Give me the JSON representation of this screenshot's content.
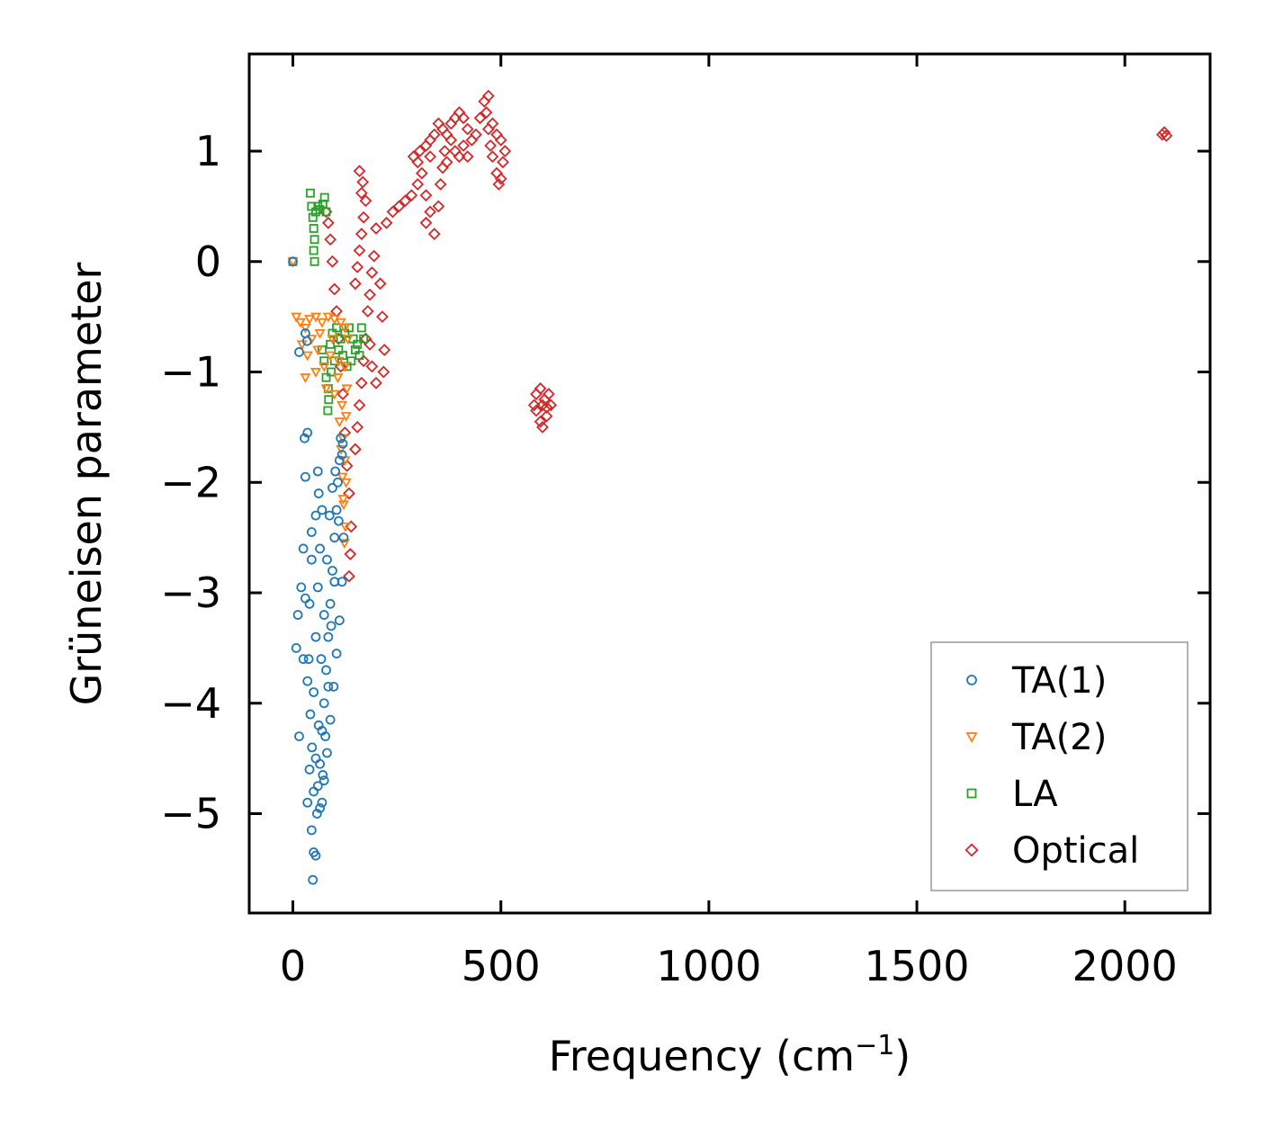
{
  "chart_data": {
    "type": "scatter",
    "title": "",
    "xlabel": {
      "main": "Frequency (cm",
      "superscript": "−1",
      "close": ")"
    },
    "ylabel": "Grüneisen parameter",
    "xlim": [
      -105,
      2205
    ],
    "ylim": [
      -5.9,
      1.88
    ],
    "xticks": [
      0,
      500,
      1000,
      1500,
      2000
    ],
    "xtick_labels": [
      "0",
      "500",
      "1000",
      "1500",
      "2000"
    ],
    "yticks": [
      1,
      0,
      -1,
      -2,
      -3,
      -4,
      -5
    ],
    "ytick_labels": [
      "1",
      "0",
      "−1",
      "−2",
      "−3",
      "−4",
      "−5"
    ],
    "grid": false,
    "legend_position": "bottom-right",
    "series": [
      {
        "name": "TA(1)",
        "marker": "circle",
        "color": "#1f77b4",
        "points": [
          [
            0,
            0
          ],
          [
            15,
            -0.82
          ],
          [
            30,
            -0.65
          ],
          [
            34,
            -0.72
          ],
          [
            28,
            -1.6
          ],
          [
            30,
            -1.95
          ],
          [
            35,
            -1.55
          ],
          [
            25,
            -2.6
          ],
          [
            20,
            -2.95
          ],
          [
            12,
            -3.2
          ],
          [
            8,
            -3.5
          ],
          [
            15,
            -4.3
          ],
          [
            40,
            -4.6
          ],
          [
            35,
            -4.9
          ],
          [
            45,
            -5.15
          ],
          [
            50,
            -5.35
          ],
          [
            48,
            -5.6
          ],
          [
            55,
            -5.38
          ],
          [
            60,
            -4.75
          ],
          [
            65,
            -4.55
          ],
          [
            70,
            -4.25
          ],
          [
            75,
            -4.0
          ],
          [
            80,
            -3.7
          ],
          [
            85,
            -3.4
          ],
          [
            90,
            -3.1
          ],
          [
            95,
            -2.8
          ],
          [
            100,
            -2.5
          ],
          [
            105,
            -2.25
          ],
          [
            108,
            -2.0
          ],
          [
            112,
            -1.8
          ],
          [
            115,
            -1.6
          ],
          [
            118,
            -1.75
          ],
          [
            110,
            -2.35
          ],
          [
            100,
            -2.9
          ],
          [
            92,
            -3.3
          ],
          [
            85,
            -3.85
          ],
          [
            78,
            -4.3
          ],
          [
            72,
            -4.65
          ],
          [
            65,
            -4.95
          ],
          [
            58,
            -5.0
          ],
          [
            50,
            -4.8
          ],
          [
            46,
            -4.4
          ],
          [
            50,
            -3.9
          ],
          [
            55,
            -3.4
          ],
          [
            60,
            -2.95
          ],
          [
            65,
            -2.6
          ],
          [
            70,
            -2.25
          ],
          [
            62,
            -2.1
          ],
          [
            55,
            -2.3
          ],
          [
            45,
            -2.7
          ],
          [
            40,
            -3.1
          ],
          [
            38,
            -3.6
          ],
          [
            42,
            -4.1
          ],
          [
            55,
            -4.5
          ],
          [
            62,
            -4.2
          ],
          [
            68,
            -3.6
          ],
          [
            75,
            -3.2
          ],
          [
            82,
            -2.7
          ],
          [
            88,
            -2.3
          ],
          [
            95,
            -2.05
          ],
          [
            102,
            -1.9
          ],
          [
            60,
            -1.9
          ],
          [
            45,
            -2.45
          ],
          [
            30,
            -3.05
          ],
          [
            25,
            -3.6
          ],
          [
            35,
            -3.8
          ],
          [
            120,
            -1.65
          ],
          [
            122,
            -2.5
          ],
          [
            118,
            -2.9
          ],
          [
            112,
            -3.25
          ],
          [
            105,
            -3.55
          ],
          [
            98,
            -3.85
          ],
          [
            90,
            -4.15
          ],
          [
            82,
            -4.45
          ],
          [
            75,
            -4.7
          ],
          [
            70,
            -4.9
          ]
        ]
      },
      {
        "name": "TA(2)",
        "marker": "triangle-down",
        "color": "#ff7f0e",
        "points": [
          [
            0,
            0
          ],
          [
            8,
            -0.5
          ],
          [
            18,
            -0.55
          ],
          [
            30,
            -0.6
          ],
          [
            40,
            -0.52
          ],
          [
            55,
            -0.5
          ],
          [
            70,
            -0.55
          ],
          [
            85,
            -0.5
          ],
          [
            100,
            -0.52
          ],
          [
            115,
            -0.55
          ],
          [
            125,
            -0.6
          ],
          [
            22,
            -0.75
          ],
          [
            35,
            -0.85
          ],
          [
            45,
            -0.7
          ],
          [
            60,
            -0.8
          ],
          [
            75,
            -0.95
          ],
          [
            90,
            -0.85
          ],
          [
            110,
            -0.9
          ],
          [
            125,
            -0.95
          ],
          [
            30,
            -1.05
          ],
          [
            55,
            -1.0
          ],
          [
            80,
            -1.15
          ],
          [
            100,
            -1.2
          ],
          [
            118,
            -1.3
          ],
          [
            128,
            -1.4
          ],
          [
            120,
            -1.6
          ],
          [
            125,
            -1.8
          ],
          [
            128,
            -2.0
          ],
          [
            122,
            -2.2
          ],
          [
            126,
            -2.4
          ],
          [
            124,
            -2.55
          ],
          [
            130,
            -1.15
          ],
          [
            132,
            -0.7
          ],
          [
            65,
            -0.65
          ],
          [
            95,
            -0.7
          ],
          [
            108,
            -1.05
          ],
          [
            112,
            -1.45
          ],
          [
            116,
            -1.7
          ],
          [
            119,
            -1.95
          ],
          [
            121,
            -2.15
          ]
        ]
      },
      {
        "name": "LA",
        "marker": "square",
        "color": "#2ca02c",
        "points": [
          [
            0,
            0
          ],
          [
            42,
            0.62
          ],
          [
            45,
            0.5
          ],
          [
            48,
            0.4
          ],
          [
            50,
            0.3
          ],
          [
            52,
            0.2
          ],
          [
            50,
            0.1
          ],
          [
            52,
            0.0
          ],
          [
            55,
            0.45
          ],
          [
            60,
            0.5
          ],
          [
            65,
            0.47
          ],
          [
            72,
            0.52
          ],
          [
            76,
            0.58
          ],
          [
            80,
            0.45
          ],
          [
            70,
            -0.8
          ],
          [
            75,
            -0.9
          ],
          [
            80,
            -1.05
          ],
          [
            85,
            -1.15
          ],
          [
            90,
            -0.75
          ],
          [
            95,
            -0.65
          ],
          [
            105,
            -0.6
          ],
          [
            115,
            -0.7
          ],
          [
            125,
            -0.65
          ],
          [
            135,
            -0.6
          ],
          [
            145,
            -0.7
          ],
          [
            155,
            -0.75
          ],
          [
            165,
            -0.6
          ],
          [
            170,
            -0.7
          ],
          [
            160,
            -0.85
          ],
          [
            150,
            -0.8
          ],
          [
            140,
            -0.9
          ],
          [
            130,
            -0.95
          ],
          [
            120,
            -0.85
          ],
          [
            110,
            -0.8
          ],
          [
            100,
            -0.9
          ],
          [
            92,
            -1.0
          ],
          [
            86,
            -1.25
          ],
          [
            84,
            -1.35
          ]
        ]
      },
      {
        "name": "Optical",
        "marker": "diamond",
        "color": "#d62728",
        "points": [
          [
            80,
            0.45
          ],
          [
            85,
            0.35
          ],
          [
            90,
            0.2
          ],
          [
            95,
            0.0
          ],
          [
            100,
            -0.25
          ],
          [
            105,
            -0.45
          ],
          [
            110,
            -0.7
          ],
          [
            115,
            -0.95
          ],
          [
            120,
            -1.2
          ],
          [
            125,
            -1.55
          ],
          [
            130,
            -1.85
          ],
          [
            135,
            -2.1
          ],
          [
            140,
            -2.4
          ],
          [
            138,
            -2.65
          ],
          [
            135,
            -2.85
          ],
          [
            150,
            -1.7
          ],
          [
            155,
            -1.5
          ],
          [
            160,
            -1.3
          ],
          [
            165,
            -1.1
          ],
          [
            170,
            -0.9
          ],
          [
            175,
            -0.7
          ],
          [
            180,
            -0.45
          ],
          [
            185,
            -0.3
          ],
          [
            190,
            -0.1
          ],
          [
            195,
            0.05
          ],
          [
            150,
            -0.2
          ],
          [
            155,
            -0.05
          ],
          [
            160,
            0.1
          ],
          [
            165,
            0.25
          ],
          [
            170,
            0.4
          ],
          [
            175,
            0.55
          ],
          [
            168,
            0.72
          ],
          [
            160,
            0.82
          ],
          [
            165,
            0.62
          ],
          [
            200,
            0.3
          ],
          [
            210,
            -0.2
          ],
          [
            215,
            -0.5
          ],
          [
            220,
            -0.8
          ],
          [
            218,
            -1.0
          ],
          [
            200,
            -1.1
          ],
          [
            190,
            -0.95
          ],
          [
            185,
            -0.75
          ],
          [
            225,
            0.35
          ],
          [
            240,
            0.45
          ],
          [
            255,
            0.5
          ],
          [
            270,
            0.55
          ],
          [
            285,
            0.6
          ],
          [
            300,
            0.7
          ],
          [
            310,
            0.8
          ],
          [
            305,
            1.0
          ],
          [
            300,
            0.9
          ],
          [
            290,
            0.95
          ],
          [
            320,
            1.05
          ],
          [
            330,
            0.95
          ],
          [
            320,
            0.6
          ],
          [
            330,
            0.45
          ],
          [
            320,
            0.35
          ],
          [
            340,
            0.25
          ],
          [
            350,
            0.5
          ],
          [
            355,
            0.7
          ],
          [
            360,
            0.85
          ],
          [
            365,
            1.0
          ],
          [
            370,
            1.15
          ],
          [
            380,
            1.25
          ],
          [
            390,
            1.3
          ],
          [
            400,
            1.35
          ],
          [
            410,
            1.3
          ],
          [
            420,
            1.2
          ],
          [
            430,
            1.1
          ],
          [
            440,
            1.15
          ],
          [
            450,
            1.3
          ],
          [
            460,
            1.45
          ],
          [
            470,
            1.5
          ],
          [
            465,
            1.35
          ],
          [
            470,
            1.2
          ],
          [
            475,
            1.05
          ],
          [
            480,
            0.95
          ],
          [
            490,
            0.8
          ],
          [
            495,
            0.7
          ],
          [
            500,
            0.75
          ],
          [
            505,
            0.9
          ],
          [
            510,
            1.0
          ],
          [
            500,
            1.1
          ],
          [
            490,
            1.15
          ],
          [
            480,
            1.25
          ],
          [
            410,
            1.05
          ],
          [
            420,
            0.95
          ],
          [
            400,
            0.95
          ],
          [
            390,
            1.0
          ],
          [
            380,
            1.1
          ],
          [
            370,
            0.9
          ],
          [
            360,
            1.2
          ],
          [
            350,
            1.25
          ],
          [
            340,
            1.15
          ],
          [
            330,
            1.1
          ],
          [
            585,
            -1.2
          ],
          [
            595,
            -1.15
          ],
          [
            605,
            -1.25
          ],
          [
            615,
            -1.2
          ],
          [
            620,
            -1.3
          ],
          [
            610,
            -1.4
          ],
          [
            600,
            -1.5
          ],
          [
            595,
            -1.45
          ],
          [
            585,
            -1.35
          ],
          [
            580,
            -1.3
          ],
          [
            600,
            -1.3
          ],
          [
            610,
            -1.32
          ],
          [
            2090,
            1.15
          ],
          [
            2095,
            1.17
          ],
          [
            2100,
            1.14
          ]
        ]
      }
    ]
  }
}
